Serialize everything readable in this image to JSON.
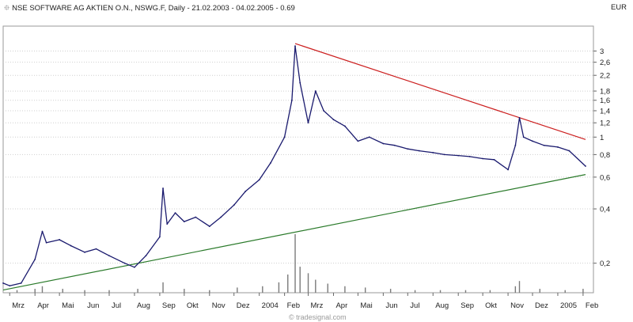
{
  "header": {
    "title": "NSE SOFTWARE AG AKTIEN O.N., NSWG.F, Daily - 21.02.2003 - 04.02.2005 - 0.69",
    "currency": "EUR",
    "pin_icon": "pin-icon"
  },
  "footer": {
    "watermark": "© tradesignal.com"
  },
  "chart_data": {
    "type": "line",
    "y_scale": "log",
    "ylim": [
      0.14,
      4.0
    ],
    "y_ticks": [
      "0,2",
      "0,4",
      "0,6",
      "0,8",
      "1",
      "1,2",
      "1,4",
      "1,6",
      "1,8",
      "2,2",
      "2,6",
      "3"
    ],
    "y_tick_values": [
      0.2,
      0.4,
      0.6,
      0.8,
      1.0,
      1.2,
      1.4,
      1.6,
      1.8,
      2.2,
      2.6,
      3.0
    ],
    "x_ticks": [
      "Mrz",
      "Apr",
      "Mai",
      "Jun",
      "Jul",
      "Aug",
      "Sep",
      "Okt",
      "Nov",
      "Dez",
      "2004",
      "Feb",
      "Mrz",
      "Apr",
      "Mai",
      "Jun",
      "Jul",
      "Aug",
      "Sep",
      "Okt",
      "Nov",
      "Dez",
      "2005",
      "Feb"
    ],
    "x_tick_dates": [
      "2003-03-01",
      "2003-04-01",
      "2003-05-01",
      "2003-06-01",
      "2003-07-01",
      "2003-08-01",
      "2003-09-01",
      "2003-10-01",
      "2003-11-01",
      "2003-12-01",
      "2004-01-01",
      "2004-02-01",
      "2004-03-01",
      "2004-04-01",
      "2004-05-01",
      "2004-06-01",
      "2004-07-01",
      "2004-08-01",
      "2004-09-01",
      "2004-10-01",
      "2004-11-01",
      "2004-12-01",
      "2005-01-01",
      "2005-02-01"
    ],
    "xlim": [
      "2003-02-21",
      "2005-02-04"
    ],
    "series": [
      {
        "points": [
          [
            "2003-02-21",
            0.155
          ],
          [
            "2003-03-01",
            0.15
          ],
          [
            "2003-03-15",
            0.155
          ],
          [
            "2003-04-01",
            0.21
          ],
          [
            "2003-04-10",
            0.3
          ],
          [
            "2003-04-15",
            0.26
          ],
          [
            "2003-05-01",
            0.27
          ],
          [
            "2003-05-15",
            0.25
          ],
          [
            "2003-06-01",
            0.23
          ],
          [
            "2003-06-15",
            0.24
          ],
          [
            "2003-07-01",
            0.22
          ],
          [
            "2003-07-20",
            0.2
          ],
          [
            "2003-08-01",
            0.19
          ],
          [
            "2003-08-15",
            0.22
          ],
          [
            "2003-09-01",
            0.28
          ],
          [
            "2003-09-05",
            0.52
          ],
          [
            "2003-09-10",
            0.33
          ],
          [
            "2003-09-20",
            0.38
          ],
          [
            "2003-10-01",
            0.34
          ],
          [
            "2003-10-15",
            0.36
          ],
          [
            "2003-11-01",
            0.32
          ],
          [
            "2003-11-15",
            0.36
          ],
          [
            "2003-12-01",
            0.42
          ],
          [
            "2003-12-15",
            0.5
          ],
          [
            "2004-01-01",
            0.58
          ],
          [
            "2004-01-15",
            0.72
          ],
          [
            "2004-02-01",
            1.0
          ],
          [
            "2004-02-10",
            1.6
          ],
          [
            "2004-02-14",
            3.2
          ],
          [
            "2004-02-20",
            2.0
          ],
          [
            "2004-03-01",
            1.2
          ],
          [
            "2004-03-10",
            1.8
          ],
          [
            "2004-03-20",
            1.4
          ],
          [
            "2004-04-01",
            1.25
          ],
          [
            "2004-04-15",
            1.15
          ],
          [
            "2004-05-01",
            0.95
          ],
          [
            "2004-05-15",
            1.0
          ],
          [
            "2004-06-01",
            0.92
          ],
          [
            "2004-06-15",
            0.9
          ],
          [
            "2004-07-01",
            0.86
          ],
          [
            "2004-07-15",
            0.84
          ],
          [
            "2004-08-01",
            0.82
          ],
          [
            "2004-08-15",
            0.8
          ],
          [
            "2004-09-01",
            0.79
          ],
          [
            "2004-09-15",
            0.78
          ],
          [
            "2004-10-01",
            0.76
          ],
          [
            "2004-10-15",
            0.75
          ],
          [
            "2004-11-01",
            0.66
          ],
          [
            "2004-11-10",
            0.9
          ],
          [
            "2004-11-15",
            1.28
          ],
          [
            "2004-11-20",
            1.0
          ],
          [
            "2004-12-01",
            0.95
          ],
          [
            "2004-12-15",
            0.9
          ],
          [
            "2005-01-01",
            0.88
          ],
          [
            "2005-01-15",
            0.84
          ],
          [
            "2005-02-04",
            0.69
          ]
        ]
      }
    ],
    "trendlines": [
      {
        "color": "#cc1f1f",
        "from": [
          "2004-02-14",
          3.3
        ],
        "to": [
          "2005-02-04",
          0.97
        ]
      },
      {
        "color": "#2a7a2a",
        "from": [
          "2003-02-21",
          0.142
        ],
        "to": [
          "2005-02-04",
          0.62
        ]
      }
    ],
    "volume": [
      [
        "2003-03-10",
        2
      ],
      [
        "2003-04-01",
        3
      ],
      [
        "2003-04-10",
        5
      ],
      [
        "2003-05-05",
        3
      ],
      [
        "2003-06-01",
        2
      ],
      [
        "2003-07-01",
        2
      ],
      [
        "2003-08-05",
        3
      ],
      [
        "2003-09-05",
        8
      ],
      [
        "2003-10-01",
        3
      ],
      [
        "2003-11-01",
        2
      ],
      [
        "2003-12-05",
        4
      ],
      [
        "2004-01-05",
        5
      ],
      [
        "2004-01-25",
        8
      ],
      [
        "2004-02-05",
        14
      ],
      [
        "2004-02-14",
        45
      ],
      [
        "2004-02-20",
        20
      ],
      [
        "2004-03-01",
        15
      ],
      [
        "2004-03-10",
        10
      ],
      [
        "2004-03-25",
        7
      ],
      [
        "2004-04-15",
        5
      ],
      [
        "2004-05-10",
        4
      ],
      [
        "2004-06-10",
        3
      ],
      [
        "2004-07-10",
        2
      ],
      [
        "2004-08-10",
        2
      ],
      [
        "2004-09-10",
        2
      ],
      [
        "2004-10-10",
        2
      ],
      [
        "2004-11-10",
        5
      ],
      [
        "2004-11-15",
        9
      ],
      [
        "2004-12-10",
        3
      ],
      [
        "2005-01-10",
        2
      ],
      [
        "2005-02-01",
        3
      ]
    ],
    "colors": {
      "price": "#1a1a6e",
      "volume": "#7a7a7a",
      "grid": "#cfcfcf"
    }
  }
}
